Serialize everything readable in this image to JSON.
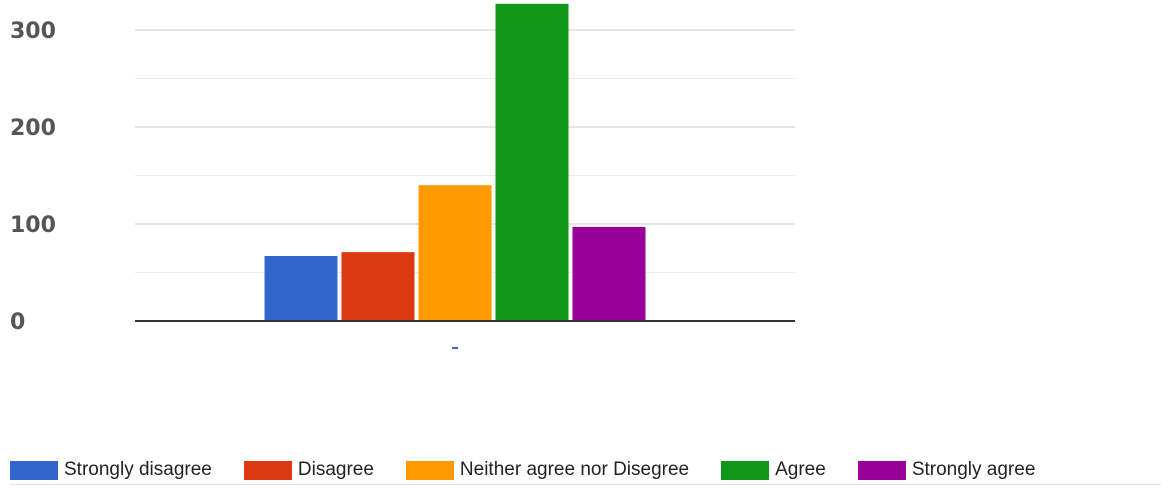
{
  "chart_data": {
    "type": "bar",
    "title": "",
    "xlabel": "",
    "ylabel": "",
    "ylim": [
      0,
      330
    ],
    "yticks": [
      0,
      100,
      200,
      300
    ],
    "grid": true,
    "legend_position": "bottom",
    "categories": [
      ""
    ],
    "series": [
      {
        "name": "Strongly disagree",
        "values": [
          67
        ],
        "color": "#3366cc"
      },
      {
        "name": "Disagree",
        "values": [
          71
        ],
        "color": "#dc3912"
      },
      {
        "name": "Neither agree nor Disegree",
        "values": [
          140
        ],
        "color": "#ff9900"
      },
      {
        "name": "Agree",
        "values": [
          327
        ],
        "color": "#109618"
      },
      {
        "name": "Strongly agree",
        "values": [
          97
        ],
        "color": "#990099"
      }
    ]
  }
}
